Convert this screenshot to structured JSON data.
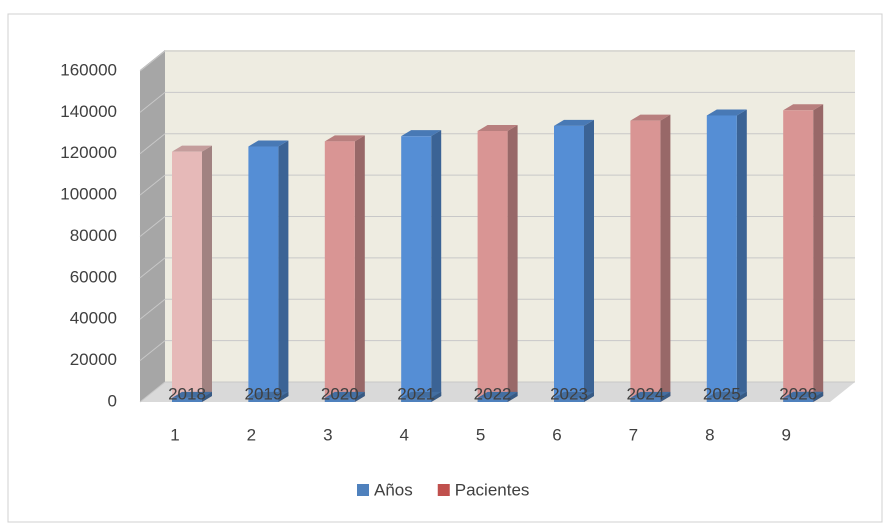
{
  "chart_data": {
    "type": "bar3d",
    "categories": [
      "1",
      "2",
      "3",
      "4",
      "5",
      "6",
      "7",
      "8",
      "9"
    ],
    "series": [
      {
        "name": "Años",
        "color": "#4f81bd",
        "values": [
          2018,
          2019,
          2020,
          2021,
          2022,
          2023,
          2024,
          2025,
          2026
        ]
      },
      {
        "name": "Pacientes",
        "color": "#c0504d",
        "values": [
          121000,
          123500,
          126000,
          128500,
          131000,
          133500,
          136000,
          138500,
          141000
        ],
        "colors": [
          "#e6b9b8",
          "#558ed5",
          "#d99594",
          "#558ed5",
          "#d99594",
          "#558ed5",
          "#d99594",
          "#558ed5",
          "#d99594"
        ]
      }
    ],
    "ylim": [
      0,
      160000
    ],
    "yticks": [
      0,
      20000,
      40000,
      60000,
      80000,
      100000,
      120000,
      140000,
      160000
    ],
    "grid": true,
    "legend": "bottom"
  }
}
